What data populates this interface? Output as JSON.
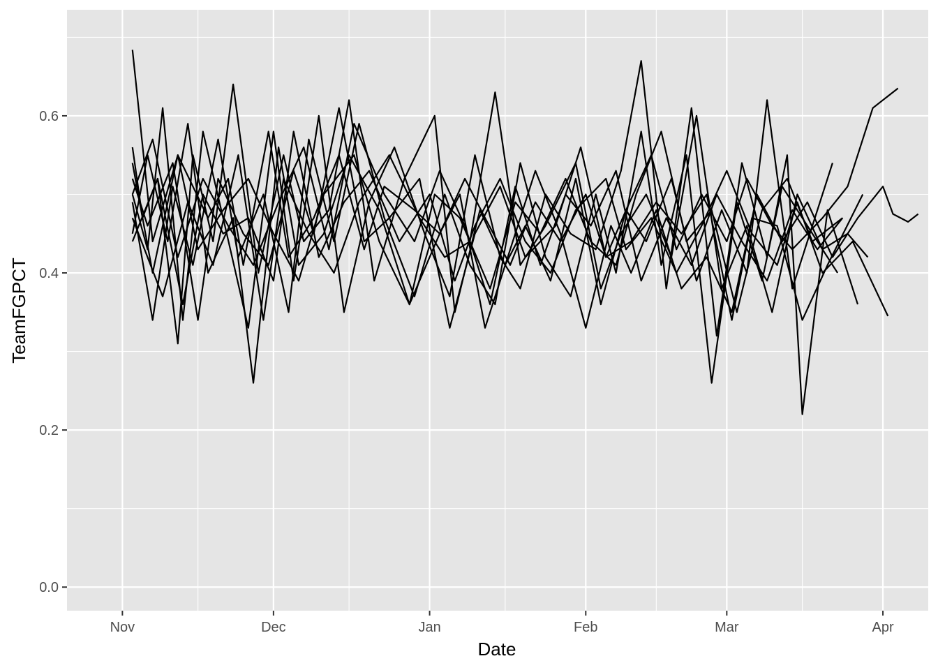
{
  "chart_data": {
    "type": "line",
    "xlabel": "Date",
    "ylabel": "TeamFGPCT",
    "xlim": [
      "2016-10-21",
      "2017-04-10"
    ],
    "ylim": [
      -0.03,
      0.735
    ],
    "x_ticks": [
      {
        "label": "Nov",
        "date": "2016-11-01"
      },
      {
        "label": "Dec",
        "date": "2016-12-01"
      },
      {
        "label": "Jan",
        "date": "2017-01-01"
      },
      {
        "label": "Feb",
        "date": "2017-02-01"
      },
      {
        "label": "Mar",
        "date": "2017-03-01"
      },
      {
        "label": "Apr",
        "date": "2017-04-01"
      }
    ],
    "x_minor_dates": [
      "2016-11-16",
      "2016-12-16",
      "2017-01-16",
      "2017-02-15",
      "2017-03-16"
    ],
    "y_ticks": [
      {
        "label": "0.0",
        "value": 0.0
      },
      {
        "label": "0.2",
        "value": 0.2
      },
      {
        "label": "0.4",
        "value": 0.4
      },
      {
        "label": "0.6",
        "value": 0.6
      }
    ],
    "y_minor_values": [
      0.1,
      0.3,
      0.5,
      0.7
    ],
    "grid": true,
    "legend": "none",
    "line_color": "#000000",
    "panel_background": "#e5e5e5",
    "grid_color": "#ffffff",
    "series": [
      {
        "x": [
          "2016-11-03",
          "2016-11-07",
          "2016-11-12",
          "2016-11-18",
          "2016-11-22",
          "2016-11-25",
          "2016-11-30",
          "2016-12-04",
          "2016-12-09",
          "2016-12-14",
          "2016-12-19",
          "2016-12-23",
          "2016-12-29",
          "2017-01-03",
          "2017-01-08",
          "2017-01-12",
          "2017-01-17",
          "2017-01-22",
          "2017-01-27",
          "2017-02-01",
          "2017-02-05",
          "2017-02-09",
          "2017-02-14",
          "2017-02-19",
          "2017-02-24",
          "2017-03-01",
          "2017-03-05",
          "2017-03-10",
          "2017-03-14",
          "2017-03-20",
          "2017-03-25",
          "2017-03-30",
          "2017-04-04"
        ],
        "y": [
          0.684,
          0.44,
          0.55,
          0.47,
          0.52,
          0.41,
          0.58,
          0.42,
          0.47,
          0.55,
          0.43,
          0.51,
          0.48,
          0.45,
          0.52,
          0.47,
          0.41,
          0.49,
          0.44,
          0.5,
          0.42,
          0.48,
          0.55,
          0.43,
          0.5,
          0.44,
          0.52,
          0.46,
          0.43,
          0.47,
          0.51,
          0.61,
          0.635
        ]
      },
      {
        "x": [
          "2016-11-03",
          "2016-11-06",
          "2016-11-09",
          "2016-11-13",
          "2016-11-17",
          "2016-11-21",
          "2016-11-26",
          "2016-12-01",
          "2016-12-05",
          "2016-12-10",
          "2016-12-15",
          "2016-12-20",
          "2016-12-25",
          "2016-12-31",
          "2017-01-05",
          "2017-01-10",
          "2017-01-15",
          "2017-01-19",
          "2017-01-24",
          "2017-01-29",
          "2017-02-03",
          "2017-02-08",
          "2017-02-12",
          "2017-02-17",
          "2017-02-22",
          "2017-02-27",
          "2017-03-04",
          "2017-03-09",
          "2017-03-13",
          "2017-03-16",
          "2017-03-21",
          "2017-03-27"
        ],
        "y": [
          0.5,
          0.43,
          0.61,
          0.34,
          0.58,
          0.47,
          0.33,
          0.58,
          0.39,
          0.6,
          0.35,
          0.49,
          0.56,
          0.45,
          0.37,
          0.55,
          0.42,
          0.38,
          0.5,
          0.45,
          0.43,
          0.53,
          0.67,
          0.38,
          0.61,
          0.32,
          0.54,
          0.42,
          0.55,
          0.22,
          0.48,
          0.36
        ]
      },
      {
        "x": [
          "2016-11-03",
          "2016-11-05",
          "2016-11-08",
          "2016-11-12",
          "2016-11-15",
          "2016-11-19",
          "2016-11-23",
          "2016-11-28",
          "2016-12-03",
          "2016-12-07",
          "2016-12-12",
          "2016-12-16",
          "2016-12-21",
          "2016-12-27",
          "2017-01-02",
          "2017-01-06",
          "2017-01-11",
          "2017-01-16",
          "2017-01-20",
          "2017-01-25",
          "2017-01-30",
          "2017-02-04",
          "2017-02-09",
          "2017-02-13",
          "2017-02-18",
          "2017-02-23",
          "2017-02-28",
          "2017-03-05",
          "2017-03-09",
          "2017-03-14",
          "2017-03-18",
          "2017-03-22"
        ],
        "y": [
          0.56,
          0.47,
          0.52,
          0.31,
          0.55,
          0.44,
          0.64,
          0.4,
          0.55,
          0.44,
          0.48,
          0.62,
          0.39,
          0.52,
          0.6,
          0.35,
          0.48,
          0.41,
          0.46,
          0.39,
          0.52,
          0.36,
          0.48,
          0.44,
          0.52,
          0.39,
          0.48,
          0.4,
          0.62,
          0.38,
          0.46,
          0.54
        ]
      },
      {
        "x": [
          "2016-11-03",
          "2016-11-06",
          "2016-11-10",
          "2016-11-14",
          "2016-11-18",
          "2016-11-23",
          "2016-11-27",
          "2016-12-02",
          "2016-12-06",
          "2016-12-11",
          "2016-12-16",
          "2016-12-22",
          "2016-12-28",
          "2017-01-03",
          "2017-01-07",
          "2017-01-12",
          "2017-01-18",
          "2017-01-22",
          "2017-01-27",
          "2017-02-01",
          "2017-02-06",
          "2017-02-10",
          "2017-02-15",
          "2017-02-20",
          "2017-02-25",
          "2017-03-02",
          "2017-03-06",
          "2017-03-11",
          "2017-03-16",
          "2017-03-21",
          "2017-03-28"
        ],
        "y": [
          0.45,
          0.55,
          0.44,
          0.59,
          0.4,
          0.47,
          0.26,
          0.56,
          0.41,
          0.45,
          0.55,
          0.48,
          0.36,
          0.45,
          0.5,
          0.33,
          0.45,
          0.53,
          0.45,
          0.33,
          0.46,
          0.4,
          0.48,
          0.38,
          0.42,
          0.35,
          0.47,
          0.46,
          0.34,
          0.41,
          0.5
        ]
      },
      {
        "x": [
          "2016-11-03",
          "2016-11-07",
          "2016-11-11",
          "2016-11-15",
          "2016-11-20",
          "2016-11-24",
          "2016-11-29",
          "2016-12-04",
          "2016-12-08",
          "2016-12-13",
          "2016-12-18",
          "2016-12-23",
          "2016-12-29",
          "2017-01-04",
          "2017-01-09",
          "2017-01-14",
          "2017-01-19",
          "2017-01-24",
          "2017-01-29",
          "2017-02-03",
          "2017-02-07",
          "2017-02-12",
          "2017-02-16",
          "2017-02-21",
          "2017-02-26",
          "2017-03-03",
          "2017-03-08",
          "2017-03-12",
          "2017-03-17",
          "2017-03-23"
        ],
        "y": [
          0.49,
          0.34,
          0.51,
          0.41,
          0.57,
          0.42,
          0.5,
          0.35,
          0.57,
          0.44,
          0.59,
          0.47,
          0.37,
          0.5,
          0.41,
          0.36,
          0.54,
          0.42,
          0.37,
          0.5,
          0.4,
          0.58,
          0.41,
          0.55,
          0.26,
          0.49,
          0.39,
          0.51,
          0.46,
          0.4
        ]
      },
      {
        "x": [
          "2016-11-03",
          "2016-11-08",
          "2016-11-13",
          "2016-11-17",
          "2016-11-21",
          "2016-11-26",
          "2016-12-01",
          "2016-12-05",
          "2016-12-10",
          "2016-12-15",
          "2016-12-20",
          "2016-12-26",
          "2017-01-01",
          "2017-01-06",
          "2017-01-10",
          "2017-01-15",
          "2017-01-20",
          "2017-01-25",
          "2017-01-30",
          "2017-02-05",
          "2017-02-09",
          "2017-02-14",
          "2017-02-19",
          "2017-02-24",
          "2017-03-01",
          "2017-03-06",
          "2017-03-11",
          "2017-03-15",
          "2017-03-20",
          "2017-03-26",
          "2017-04-02"
        ],
        "y": [
          0.44,
          0.52,
          0.36,
          0.5,
          0.45,
          0.47,
          0.39,
          0.58,
          0.42,
          0.49,
          0.53,
          0.44,
          0.5,
          0.39,
          0.46,
          0.52,
          0.44,
          0.4,
          0.48,
          0.52,
          0.43,
          0.47,
          0.4,
          0.46,
          0.53,
          0.45,
          0.41,
          0.49,
          0.4,
          0.44,
          0.345
        ]
      },
      {
        "x": [
          "2016-11-03",
          "2016-11-06",
          "2016-11-11",
          "2016-11-16",
          "2016-11-20",
          "2016-11-25",
          "2016-11-30",
          "2016-12-05",
          "2016-12-09",
          "2016-12-14",
          "2016-12-19",
          "2016-12-24",
          "2016-12-30",
          "2017-01-05",
          "2017-01-10",
          "2017-01-15",
          "2017-01-20",
          "2017-01-26",
          "2017-01-31",
          "2017-02-05",
          "2017-02-10",
          "2017-02-15",
          "2017-02-20",
          "2017-02-25",
          "2017-03-02",
          "2017-03-07",
          "2017-03-12",
          "2017-03-17",
          "2017-03-22",
          "2017-03-27",
          "2017-04-01",
          "2017-04-03",
          "2017-04-06",
          "2017-04-08"
        ],
        "y": [
          0.52,
          0.46,
          0.54,
          0.34,
          0.52,
          0.45,
          0.41,
          0.53,
          0.45,
          0.61,
          0.44,
          0.47,
          0.52,
          0.33,
          0.45,
          0.51,
          0.42,
          0.46,
          0.56,
          0.42,
          0.44,
          0.49,
          0.45,
          0.5,
          0.34,
          0.5,
          0.44,
          0.49,
          0.42,
          0.47,
          0.51,
          0.475,
          0.465,
          0.475
        ]
      },
      {
        "x": [
          "2016-11-03",
          "2016-11-07",
          "2016-11-12",
          "2016-11-16",
          "2016-11-21",
          "2016-11-26",
          "2016-12-01",
          "2016-12-06",
          "2016-12-11",
          "2016-12-17",
          "2016-12-22",
          "2016-12-28",
          "2017-01-02",
          "2017-01-07",
          "2017-01-13",
          "2017-01-18",
          "2017-01-23",
          "2017-01-28",
          "2017-02-02",
          "2017-02-07",
          "2017-02-11",
          "2017-02-16",
          "2017-02-21",
          "2017-02-26",
          "2017-03-03",
          "2017-03-08",
          "2017-03-13",
          "2017-03-18",
          "2017-03-24"
        ],
        "y": [
          0.54,
          0.4,
          0.55,
          0.43,
          0.48,
          0.52,
          0.45,
          0.39,
          0.5,
          0.55,
          0.44,
          0.36,
          0.5,
          0.47,
          0.38,
          0.49,
          0.45,
          0.52,
          0.44,
          0.41,
          0.5,
          0.58,
          0.44,
          0.48,
          0.35,
          0.48,
          0.52,
          0.44,
          0.47
        ]
      },
      {
        "x": [
          "2016-11-03",
          "2016-11-09",
          "2016-11-14",
          "2016-11-19",
          "2016-11-24",
          "2016-11-29",
          "2016-12-03",
          "2016-12-08",
          "2016-12-13",
          "2016-12-18",
          "2016-12-24",
          "2016-12-30",
          "2017-01-04",
          "2017-01-09",
          "2017-01-14",
          "2017-01-19",
          "2017-01-24",
          "2017-01-30",
          "2017-02-04",
          "2017-02-08",
          "2017-02-13",
          "2017-02-18",
          "2017-02-23",
          "2017-02-28",
          "2017-03-05",
          "2017-03-10",
          "2017-03-15",
          "2017-03-20",
          "2017-03-25",
          "2017-03-29"
        ],
        "y": [
          0.47,
          0.37,
          0.49,
          0.41,
          0.55,
          0.34,
          0.52,
          0.45,
          0.4,
          0.49,
          0.55,
          0.47,
          0.42,
          0.44,
          0.63,
          0.41,
          0.46,
          0.54,
          0.38,
          0.45,
          0.5,
          0.42,
          0.6,
          0.38,
          0.46,
          0.35,
          0.5,
          0.43,
          0.45,
          0.42
        ]
      },
      {
        "x": [
          "2016-11-03",
          "2016-11-07",
          "2016-11-12",
          "2016-11-17",
          "2016-11-22",
          "2016-11-27",
          "2016-12-02",
          "2016-12-07",
          "2016-12-12",
          "2016-12-17",
          "2016-12-23",
          "2016-12-29",
          "2017-01-03",
          "2017-01-08",
          "2017-01-13",
          "2017-01-18",
          "2017-01-23",
          "2017-01-28",
          "2017-02-02",
          "2017-02-07",
          "2017-02-12",
          "2017-02-17",
          "2017-02-22",
          "2017-02-27",
          "2017-03-04",
          "2017-03-09",
          "2017-03-14",
          "2017-03-19",
          "2017-03-24"
        ],
        "y": [
          0.5,
          0.57,
          0.42,
          0.52,
          0.46,
          0.41,
          0.49,
          0.56,
          0.43,
          0.59,
          0.5,
          0.44,
          0.53,
          0.46,
          0.36,
          0.51,
          0.41,
          0.5,
          0.46,
          0.53,
          0.39,
          0.47,
          0.41,
          0.5,
          0.44,
          0.39,
          0.48,
          0.43,
          0.47
        ]
      }
    ]
  }
}
